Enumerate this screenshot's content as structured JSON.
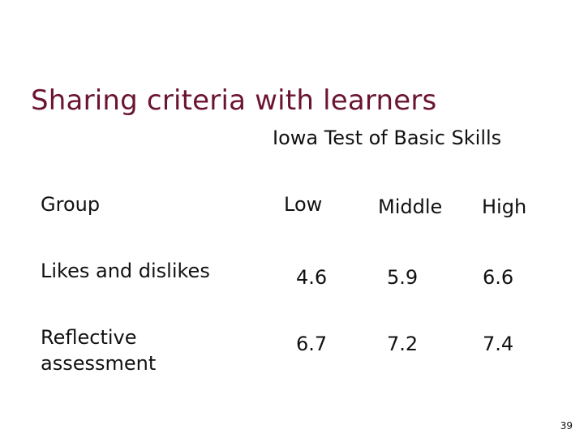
{
  "title": "Sharing criteria with learners",
  "subtitle": "Iowa Test of Basic Skills",
  "table": {
    "header": {
      "group": "Group",
      "low": "Low",
      "middle": "Middle",
      "high": "High"
    },
    "rows": [
      {
        "label": "Likes and dislikes",
        "low": "4.6",
        "middle": "5.9",
        "high": "6.6"
      },
      {
        "label": "Reflective assessment",
        "low": "6.7",
        "middle": "7.2",
        "high": "7.4"
      }
    ]
  },
  "page_number": "39"
}
